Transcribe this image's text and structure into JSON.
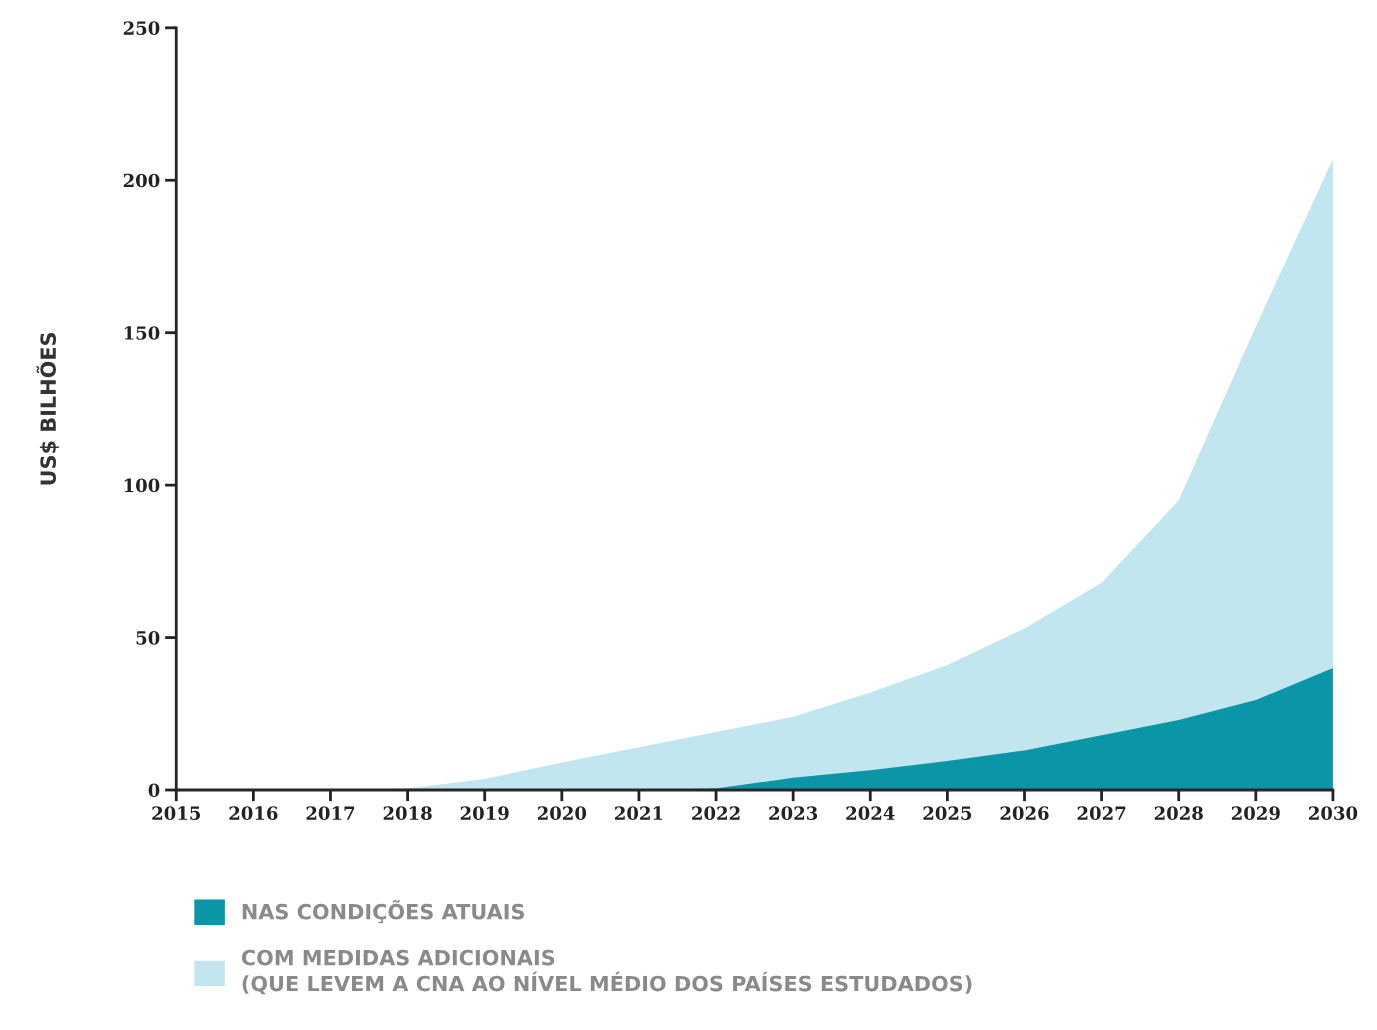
{
  "chart_data": {
    "type": "area",
    "ylabel": "US$ BILHÕES",
    "x": [
      2015,
      2016,
      2017,
      2018,
      2019,
      2020,
      2021,
      2022,
      2023,
      2024,
      2025,
      2026,
      2027,
      2028,
      2029,
      2030
    ],
    "series": [
      {
        "name": "NAS CONDIÇÕES ATUAIS",
        "color": "#0a96a6",
        "values": [
          0,
          0,
          0,
          0,
          0,
          0,
          0,
          0.5,
          4,
          6.5,
          9.5,
          13,
          18,
          23,
          29.5,
          40
        ]
      },
      {
        "name": "COM MEDIDAS ADICIONAIS\n(QUE LEVEM A CNA AO NÍVEL MÉDIO DOS PAÍSES ESTUDADOS)",
        "color": "#c2e6ef",
        "values": [
          0,
          0,
          0,
          0.5,
          3.6,
          9,
          14,
          19,
          24,
          32,
          41,
          53,
          68,
          95,
          152,
          207
        ]
      }
    ],
    "xlim": [
      2015,
      2030
    ],
    "xticks": [
      2015,
      2016,
      2017,
      2018,
      2019,
      2020,
      2021,
      2022,
      2023,
      2024,
      2025,
      2026,
      2027,
      2028,
      2029,
      2030
    ],
    "ylim": [
      0,
      250
    ],
    "yticks": [
      0,
      50,
      100,
      150,
      200,
      250
    ],
    "grid": false,
    "legend": "bottom left"
  }
}
